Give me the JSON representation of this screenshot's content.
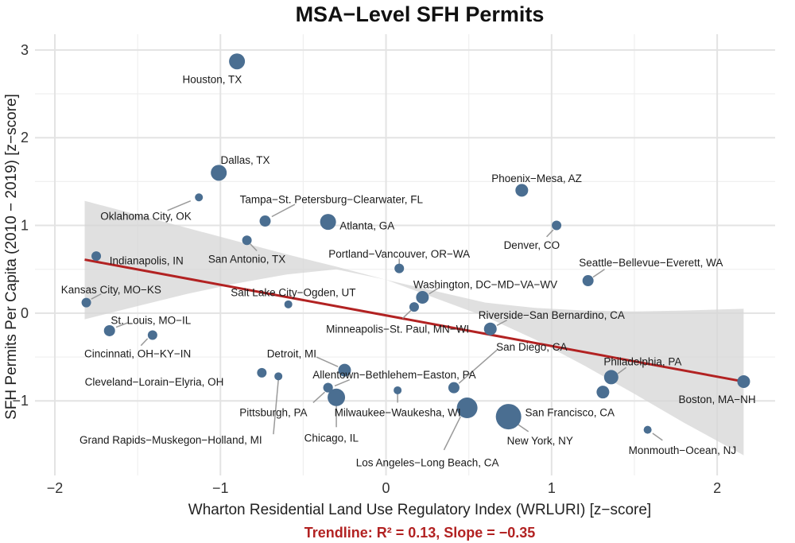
{
  "chart_data": {
    "type": "scatter",
    "title": "MSA−Level SFH Permits",
    "subtitle": "Trendline: R² = 0.13, Slope = −0.35",
    "xlabel": "Wharton Residential Land Use Regulatory Index (WRLURI) [z−score]",
    "ylabel": "SFH Permits Per Capita (2010 − 2019) [z−score]",
    "xlim": [
      -2.12,
      2.35
    ],
    "ylim": [
      -1.85,
      3.18
    ],
    "xticks": [
      -2,
      -1,
      0,
      1,
      2
    ],
    "xtick_labels": [
      "−2",
      "−1",
      "0",
      "1",
      "2"
    ],
    "yticks": [
      -1,
      0,
      1,
      2,
      3
    ],
    "ytick_labels": [
      "−1",
      "0",
      "1",
      "2",
      "3"
    ],
    "grid": true,
    "trendline": {
      "x0": -1.82,
      "y0": 0.61,
      "x1": 2.16,
      "y1": -0.78,
      "r2": 0.13,
      "slope": -0.35
    },
    "confidence_band": [
      {
        "x": -1.82,
        "upper": 1.28,
        "lower": -0.07
      },
      {
        "x": -1.5,
        "upper": 1.12,
        "lower": 0.08
      },
      {
        "x": -1.2,
        "upper": 0.97,
        "lower": 0.22
      },
      {
        "x": -0.9,
        "upper": 0.82,
        "lower": 0.34
      },
      {
        "x": -0.6,
        "upper": 0.67,
        "lower": 0.44
      },
      {
        "x": -0.3,
        "upper": 0.53,
        "lower": 0.5
      },
      {
        "x": 0.0,
        "upper": 0.38,
        "lower": 0.38
      },
      {
        "x": 0.3,
        "upper": 0.25,
        "lower": 0.17
      },
      {
        "x": 0.6,
        "upper": 0.12,
        "lower": -0.04
      },
      {
        "x": 0.9,
        "upper": 0.06,
        "lower": -0.3
      },
      {
        "x": 1.2,
        "upper": 0.03,
        "lower": -0.6
      },
      {
        "x": 1.5,
        "upper": 0.02,
        "lower": -0.92
      },
      {
        "x": 1.8,
        "upper": 0.03,
        "lower": -1.25
      },
      {
        "x": 2.16,
        "upper": 0.05,
        "lower": -1.62
      }
    ],
    "colors": {
      "points": "#4a6e91",
      "trendline": "#b22222",
      "band": "#d5d5d5",
      "grid": "#e3e3e3",
      "leader": "#9a9a9a"
    },
    "points": [
      {
        "name": "Houston, TX",
        "x": -0.9,
        "y": 2.87,
        "size": 10,
        "label": "Houston, TX",
        "lx": -1.05,
        "ly": 2.67,
        "anchor": "middle"
      },
      {
        "name": "Dallas, TX",
        "x": -1.01,
        "y": 1.6,
        "size": 10,
        "label": "Dallas, TX",
        "lx": -0.85,
        "ly": 1.75,
        "anchor": "middle"
      },
      {
        "name": "Oklahoma City, OK",
        "x": -1.13,
        "y": 1.32,
        "size": 5,
        "label": "Oklahoma City, OK",
        "lx": -1.45,
        "ly": 1.11,
        "anchor": "middle",
        "leader": [
          -1.18,
          1.28,
          -1.32,
          1.17
        ]
      },
      {
        "name": "Tampa−St. Petersburg−Clearwater, FL",
        "x": -0.73,
        "y": 1.05,
        "size": 7,
        "label": "Tampa−St. Petersburg−Clearwater, FL",
        "lx": -0.33,
        "ly": 1.3,
        "anchor": "middle",
        "leader": [
          -0.69,
          1.1,
          -0.55,
          1.24
        ]
      },
      {
        "name": "Atlanta, GA",
        "x": -0.35,
        "y": 1.04,
        "size": 10,
        "label": "Atlanta, GA",
        "lx": -0.28,
        "ly": 1.0,
        "anchor": "start"
      },
      {
        "name": "San Antonio, TX",
        "x": -0.84,
        "y": 0.83,
        "size": 6,
        "label": "San Antonio, TX",
        "lx": -0.84,
        "ly": 0.62,
        "anchor": "middle",
        "leader": [
          -0.82,
          0.79,
          -0.78,
          0.71
        ]
      },
      {
        "name": "Indianapolis, IN",
        "x": -1.75,
        "y": 0.65,
        "size": 6,
        "label": "Indianapolis, IN",
        "lx": -1.67,
        "ly": 0.6,
        "anchor": "start"
      },
      {
        "name": "Kansas City, MO−KS",
        "x": -1.81,
        "y": 0.12,
        "size": 6,
        "label": "Kansas City, MO−KS",
        "lx": -1.66,
        "ly": 0.27,
        "anchor": "middle",
        "leader": [
          -1.78,
          0.16,
          -1.72,
          0.22
        ]
      },
      {
        "name": "St. Louis, MO−IL",
        "x": -1.67,
        "y": -0.2,
        "size": 7,
        "label": "St. Louis, MO−IL",
        "lx": -1.42,
        "ly": -0.08,
        "anchor": "middle",
        "leader": [
          -1.63,
          -0.16,
          -1.56,
          -0.11
        ]
      },
      {
        "name": "Cincinnati, OH−KY−IN",
        "x": -1.41,
        "y": -0.25,
        "size": 6,
        "label": "Cincinnati, OH−KY−IN",
        "lx": -1.5,
        "ly": -0.46,
        "anchor": "middle",
        "leader": [
          -1.44,
          -0.29,
          -1.48,
          -0.37
        ]
      },
      {
        "name": "Salt Lake City−Ogden, UT",
        "x": -0.59,
        "y": 0.1,
        "size": 5,
        "label": "Salt Lake City−Ogden, UT",
        "lx": -0.56,
        "ly": 0.24,
        "anchor": "middle"
      },
      {
        "name": "Portland−Vancouver, OR−WA",
        "x": 0.08,
        "y": 0.51,
        "size": 6,
        "label": "Portland−Vancouver, OR−WA",
        "lx": 0.08,
        "ly": 0.68,
        "anchor": "middle",
        "leader": [
          0.08,
          0.55,
          0.08,
          0.62
        ]
      },
      {
        "name": "Washington, DC−MD−VA−WV",
        "x": 0.22,
        "y": 0.18,
        "size": 8,
        "label": "Washington, DC−MD−VA−WV",
        "lx": 0.6,
        "ly": 0.33,
        "anchor": "middle",
        "leader": [
          0.26,
          0.22,
          0.32,
          0.29
        ]
      },
      {
        "name": "Minneapolis−St. Paul, MN−WI",
        "x": 0.17,
        "y": 0.07,
        "size": 6,
        "label": "Minneapolis−St. Paul, MN−WI",
        "lx": 0.07,
        "ly": -0.18,
        "anchor": "middle",
        "leader": [
          0.15,
          0.03,
          0.1,
          -0.06
        ]
      },
      {
        "name": "Phoenix−Mesa, AZ",
        "x": 0.82,
        "y": 1.4,
        "size": 8,
        "label": "Phoenix−Mesa, AZ",
        "lx": 0.91,
        "ly": 1.54,
        "anchor": "middle"
      },
      {
        "name": "Denver, CO",
        "x": 1.03,
        "y": 1.0,
        "size": 6,
        "label": "Denver, CO",
        "lx": 0.88,
        "ly": 0.78,
        "anchor": "middle",
        "leader": [
          1.01,
          0.95,
          0.97,
          0.87
        ]
      },
      {
        "name": "Seattle−Bellevue−Everett, WA",
        "x": 1.22,
        "y": 0.37,
        "size": 7,
        "label": "Seattle−Bellevue−Everett, WA",
        "lx": 1.6,
        "ly": 0.58,
        "anchor": "middle",
        "leader": [
          1.25,
          0.41,
          1.32,
          0.5
        ]
      },
      {
        "name": "Riverside−San Bernardino, CA",
        "x": 0.63,
        "y": -0.18,
        "size": 8,
        "label": "Riverside−San Bernardino, CA",
        "lx": 1.0,
        "ly": -0.02,
        "anchor": "middle",
        "leader": [
          0.67,
          -0.14,
          0.73,
          -0.08
        ]
      },
      {
        "name": "San Diego, CA",
        "x": 0.41,
        "y": -0.85,
        "size": 7,
        "label": "San Diego, CA",
        "lx": 0.88,
        "ly": -0.38,
        "anchor": "middle",
        "leader": [
          0.44,
          -0.8,
          0.67,
          -0.42
        ]
      },
      {
        "name": "Detroit, MI",
        "x": -0.25,
        "y": -0.65,
        "size": 8,
        "label": "Detroit, MI",
        "lx": -0.57,
        "ly": -0.46,
        "anchor": "middle",
        "leader": [
          -0.29,
          -0.61,
          -0.42,
          -0.5
        ]
      },
      {
        "name": "Allentown−Bethlehem−Easton, PA",
        "x": -0.35,
        "y": -0.85,
        "size": 6,
        "label": "Allentown−Bethlehem−Easton, PA",
        "lx": 0.05,
        "ly": -0.7,
        "anchor": "middle",
        "leader": [
          -0.31,
          -0.83,
          -0.22,
          -0.76
        ]
      },
      {
        "name": "Cleveland−Lorain−Elyria, OH",
        "x": -0.75,
        "y": -0.68,
        "size": 6,
        "label": "Cleveland−Lorain−Elyria, OH",
        "lx": -0.98,
        "ly": -0.78,
        "anchor": "end"
      },
      {
        "name": "Grand Rapids−Muskegon−Holland, MI",
        "x": -0.65,
        "y": -0.72,
        "size": 5,
        "label": "Grand Rapids−Muskegon−Holland, MI",
        "lx": -1.3,
        "ly": -1.44,
        "anchor": "middle",
        "leader": [
          -0.65,
          -0.76,
          -0.68,
          -1.38
        ]
      },
      {
        "name": "Pittsburgh, PA",
        "x": -0.35,
        "y": -0.85,
        "size": 6,
        "label": "Pittsburgh, PA",
        "lx": -0.68,
        "ly": -1.13,
        "anchor": "middle",
        "leader": [
          -0.37,
          -0.9,
          -0.44,
          -1.02
        ]
      },
      {
        "name": "Chicago, IL",
        "x": -0.3,
        "y": -0.96,
        "size": 11,
        "label": "Chicago, IL",
        "lx": -0.33,
        "ly": -1.42,
        "anchor": "middle",
        "leader": [
          -0.3,
          -1.03,
          -0.3,
          -1.3
        ]
      },
      {
        "name": "Milwaukee−Waukesha, WI",
        "x": 0.07,
        "y": -0.88,
        "size": 5,
        "label": "Milwaukee−Waukesha, WI",
        "lx": 0.07,
        "ly": -1.13,
        "anchor": "middle",
        "leader": [
          0.07,
          -0.92,
          0.07,
          -1.02
        ]
      },
      {
        "name": "Los Angeles−Long Beach, CA",
        "x": 0.49,
        "y": -1.08,
        "size": 13,
        "label": "Los Angeles−Long Beach, CA",
        "lx": 0.25,
        "ly": -1.7,
        "anchor": "middle",
        "leader": [
          0.45,
          -1.18,
          0.35,
          -1.56
        ]
      },
      {
        "name": "New York, NY",
        "x": 0.74,
        "y": -1.18,
        "size": 16,
        "label": "New York, NY",
        "lx": 0.93,
        "ly": -1.45,
        "anchor": "middle",
        "leader": [
          0.79,
          -1.26,
          0.86,
          -1.35
        ]
      },
      {
        "name": "San Francisco, CA",
        "x": 1.31,
        "y": -0.9,
        "size": 8,
        "label": "San Francisco, CA",
        "lx": 1.11,
        "ly": -1.13,
        "anchor": "middle"
      },
      {
        "name": "Philadelphia, PA",
        "x": 1.36,
        "y": -0.73,
        "size": 9,
        "label": "Philadelphia, PA",
        "lx": 1.55,
        "ly": -0.55,
        "anchor": "middle",
        "leader": [
          1.4,
          -0.69,
          1.45,
          -0.62
        ]
      },
      {
        "name": "Boston, MA−NH",
        "x": 2.16,
        "y": -0.78,
        "size": 8,
        "label": "Boston, MA−NH",
        "lx": 2.0,
        "ly": -0.98,
        "anchor": "middle"
      },
      {
        "name": "Monmouth−Ocean, NJ",
        "x": 1.58,
        "y": -1.33,
        "size": 5,
        "label": "Monmouth−Ocean, NJ",
        "lx": 1.79,
        "ly": -1.56,
        "anchor": "middle",
        "leader": [
          1.61,
          -1.37,
          1.67,
          -1.45
        ]
      }
    ]
  }
}
